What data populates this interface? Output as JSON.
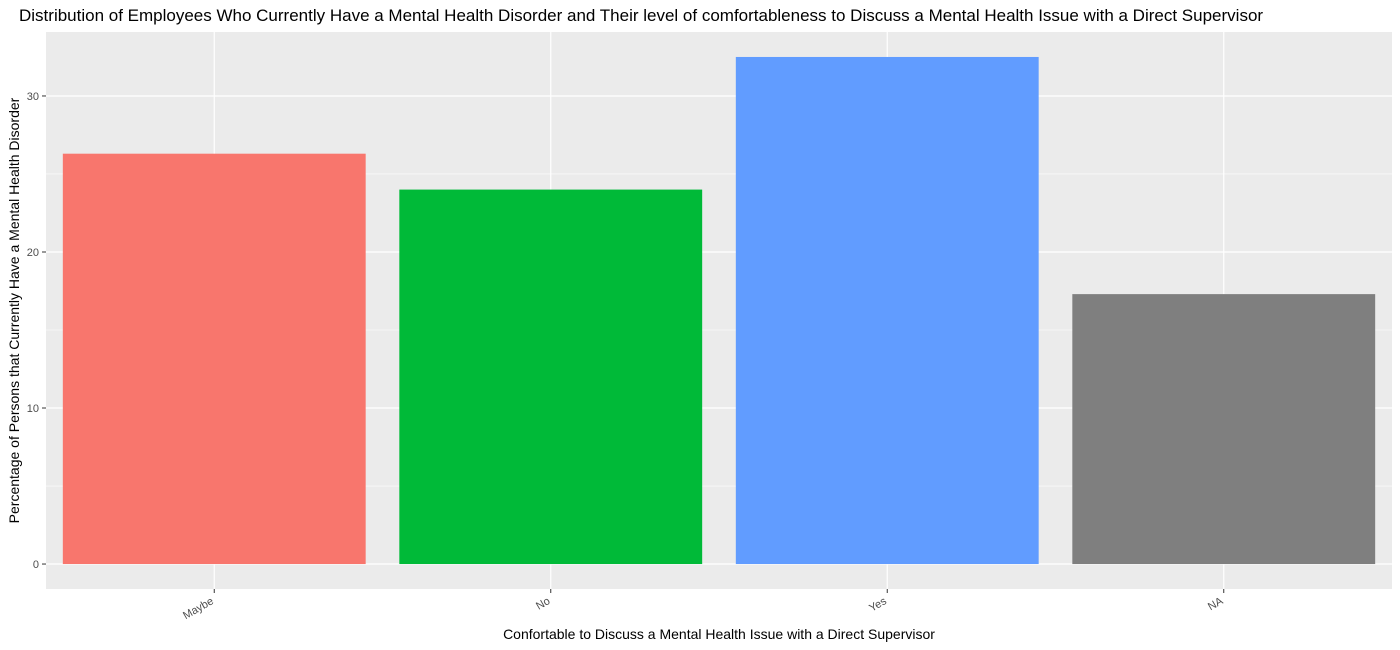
{
  "chart_data": {
    "type": "bar",
    "title": "Distribution of Employees Who Currently Have a Mental Health Disorder and Their level of comfortableness to Discuss a Mental Health Issue with a Direct Supervisor",
    "xlabel": "Confortable to Discuss a Mental Health Issue with a Direct Supervisor",
    "ylabel": "Percentage of Persons that Currently Have a Mental Health Disorder",
    "categories": [
      "Maybe",
      "No",
      "Yes",
      "NA"
    ],
    "values": [
      26.3,
      24.0,
      32.5,
      17.3
    ],
    "colors": [
      "#F8766D",
      "#00BA38",
      "#619CFF",
      "#7F7F7F"
    ],
    "ylim": [
      -1.6,
      34.1
    ],
    "yticks": [
      0,
      10,
      20,
      30
    ],
    "grid": true,
    "legend": "none",
    "panel_background": "#EBEBEB",
    "grid_color": "#FFFFFF"
  }
}
